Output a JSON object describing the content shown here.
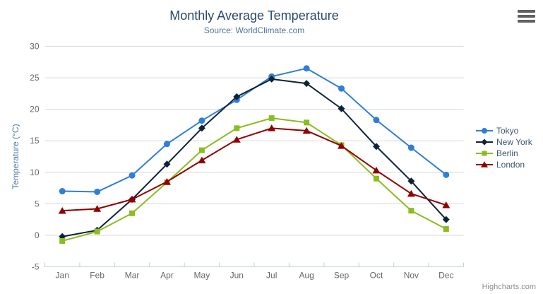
{
  "chart": {
    "credits": "Highcharts.com",
    "icons": {
      "export_menu": "hamburger-menu"
    }
  },
  "chart_data": {
    "type": "line",
    "title": "Monthly Average Temperature",
    "subtitle": "Source: WorldClimate.com",
    "categories": [
      "Jan",
      "Feb",
      "Mar",
      "Apr",
      "May",
      "Jun",
      "Jul",
      "Aug",
      "Sep",
      "Oct",
      "Nov",
      "Dec"
    ],
    "series": [
      {
        "name": "Tokyo",
        "color": "#2f7ed8",
        "marker": "circle",
        "values": [
          7.0,
          6.9,
          9.5,
          14.5,
          18.2,
          21.5,
          25.2,
          26.5,
          23.3,
          18.3,
          13.9,
          9.6
        ]
      },
      {
        "name": "New York",
        "color": "#0d233a",
        "marker": "diamond",
        "values": [
          -0.2,
          0.8,
          5.7,
          11.3,
          17.0,
          22.0,
          24.8,
          24.1,
          20.1,
          14.1,
          8.6,
          2.5
        ]
      },
      {
        "name": "Berlin",
        "color": "#8bbc21",
        "marker": "square",
        "values": [
          -0.9,
          0.6,
          3.5,
          8.4,
          13.5,
          17.0,
          18.6,
          17.9,
          14.3,
          9.0,
          3.9,
          1.0
        ]
      },
      {
        "name": "London",
        "color": "#910000",
        "marker": "triangle",
        "values": [
          3.9,
          4.2,
          5.7,
          8.5,
          11.9,
          15.2,
          17.0,
          16.6,
          14.2,
          10.3,
          6.6,
          4.8
        ]
      }
    ],
    "xlabel": "",
    "ylabel": "Temperature (°C)",
    "ylim": [
      -5,
      30
    ],
    "yticks": [
      -5,
      0,
      5,
      10,
      15,
      20,
      25,
      30
    ],
    "grid": "horizontal",
    "legend_position": "right",
    "colors": {
      "grid_line": "#d8d8d8",
      "axis_line": "#c0d0e0",
      "axis_label": "#666666",
      "title_text": "#274b6d",
      "subtitle_text": "#4d759e",
      "legend_text": "#3e576f",
      "credits_text": "#8f8f8f"
    }
  }
}
